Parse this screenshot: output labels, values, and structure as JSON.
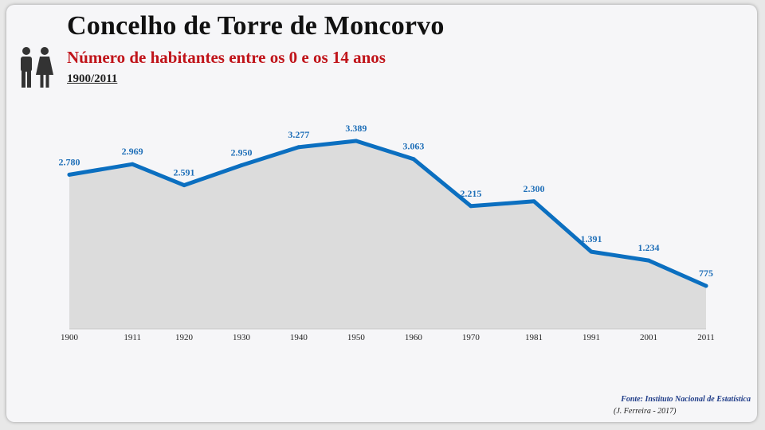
{
  "title": "Concelho de Torre de Moncorvo",
  "subtitle": "Número de habitantes entre os 0 e os 14 anos",
  "period": "1900/2011",
  "icon": "man-woman-icon",
  "source": "Fonte: Instituto Nacional de Estatística",
  "author": "(J. Ferreira - 2017)",
  "colors": {
    "line": "#0b6fc0",
    "area": "#dcdcdc",
    "label": "#1f6fb8",
    "subtitle": "#c0141a"
  },
  "chart_data": {
    "type": "area",
    "title": "Número de habitantes entre os 0 e os 14 anos",
    "categories": [
      "1900",
      "1911",
      "1920",
      "1930",
      "1940",
      "1950",
      "1960",
      "1970",
      "1981",
      "1991",
      "2001",
      "2011"
    ],
    "values": [
      2780,
      2969,
      2591,
      2950,
      3277,
      3389,
      3063,
      2215,
      2300,
      1391,
      1234,
      775
    ],
    "value_labels": [
      "2.780",
      "2.969",
      "2.591",
      "2.950",
      "3.277",
      "3.389",
      "3.063",
      "2.215",
      "2.300",
      "1.391",
      "1.234",
      "775"
    ],
    "ylim": [
      0,
      3389
    ],
    "grid": false,
    "legend": "none",
    "xlabel": "",
    "ylabel": ""
  }
}
